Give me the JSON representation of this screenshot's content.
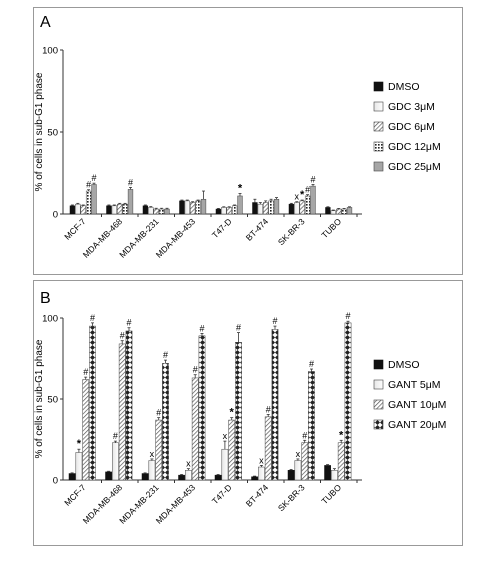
{
  "chart_data": [
    {
      "type": "bar",
      "panel_label": "A",
      "ylabel": "% of cells in sub-G1 phase",
      "ylim": [
        0,
        100
      ],
      "yticks": [
        "0",
        "50",
        "100"
      ],
      "categories": [
        "MCF-7",
        "MDA-MB-468",
        "MDA-MB-231",
        "MDA-MB-453",
        "T47-D",
        "BT-474",
        "SK-BR-3",
        "TUBO"
      ],
      "series": [
        {
          "name": "DMSO",
          "pattern": "solid",
          "values": [
            5,
            5,
            5,
            8,
            3,
            7,
            6,
            4
          ],
          "errors": [
            0.5,
            0.5,
            0.5,
            0.5,
            0.4,
            2,
            0.5,
            0.4
          ],
          "markers": [
            "",
            "",
            "",
            "",
            "",
            "",
            "",
            ""
          ]
        },
        {
          "name": "GDC 3μM",
          "pattern": "light",
          "values": [
            6,
            5,
            4,
            8,
            4,
            6,
            7,
            2
          ],
          "errors": [
            0.5,
            0.5,
            0.5,
            0.5,
            0.4,
            1,
            0.5,
            0.4
          ],
          "markers": [
            "",
            "",
            "",
            "",
            "",
            "",
            "x",
            ""
          ]
        },
        {
          "name": "GDC 6μM",
          "pattern": "diag",
          "values": [
            5,
            6,
            3,
            7,
            4,
            7,
            8,
            3
          ],
          "errors": [
            0.5,
            0.5,
            0.5,
            0.5,
            0.4,
            1,
            0.5,
            0.4
          ],
          "markers": [
            "",
            "",
            "",
            "",
            "",
            "",
            "*",
            ""
          ]
        },
        {
          "name": "GDC 12μM",
          "pattern": "dots",
          "values": [
            14,
            6,
            3,
            8,
            5,
            8,
            11,
            3
          ],
          "errors": [
            0.8,
            0.5,
            0.5,
            0.5,
            0.5,
            1,
            0.8,
            0.4
          ],
          "markers": [
            "#",
            "",
            "",
            "",
            "",
            "",
            "#",
            ""
          ]
        },
        {
          "name": "GDC 25μM",
          "pattern": "grey",
          "values": [
            18,
            15,
            3,
            9,
            11,
            9,
            17,
            4
          ],
          "errors": [
            0.8,
            1.2,
            0.5,
            5,
            1.5,
            1,
            1,
            0.4
          ],
          "markers": [
            "#",
            "#",
            "",
            "",
            "*",
            "",
            "#",
            ""
          ]
        }
      ],
      "legend_position": "right"
    },
    {
      "type": "bar",
      "panel_label": "B",
      "ylabel": "% of cells in sub-G1 phase",
      "ylim": [
        0,
        100
      ],
      "yticks": [
        "0",
        "50",
        "100"
      ],
      "categories": [
        "MCF-7",
        "MDA-MB-468",
        "MDA-MB-231",
        "MDA-MB-453",
        "T47-D",
        "BT-474",
        "SK-BR-3",
        "TUBO"
      ],
      "series": [
        {
          "name": "DMSO",
          "pattern": "solid",
          "values": [
            4,
            5,
            4,
            3,
            3,
            2,
            6,
            9
          ],
          "errors": [
            0.4,
            0.4,
            0.4,
            0.4,
            0.4,
            0.4,
            0.5,
            0.5
          ],
          "markers": [
            "",
            "",
            "",
            "",
            "",
            "",
            "",
            ""
          ]
        },
        {
          "name": "GANT 5μM",
          "pattern": "light",
          "values": [
            17,
            23,
            12,
            6,
            19,
            8,
            12,
            6
          ],
          "errors": [
            2,
            1,
            1,
            1,
            5,
            1,
            1,
            1
          ],
          "markers": [
            "*",
            "#",
            "x",
            "x",
            "x",
            "x",
            "x",
            ""
          ]
        },
        {
          "name": "GANT 10μM",
          "pattern": "diag",
          "values": [
            62,
            84,
            37,
            63,
            37,
            39,
            23,
            23
          ],
          "errors": [
            1.5,
            2,
            1.5,
            2,
            1.5,
            1.5,
            1.5,
            1.5
          ],
          "markers": [
            "#",
            "#",
            "#",
            "#",
            "*",
            "#",
            "#",
            "*"
          ]
        },
        {
          "name": "GANT 20μM",
          "pattern": "diamond",
          "values": [
            95,
            92,
            72,
            89,
            85,
            93,
            67,
            97
          ],
          "errors": [
            2,
            2,
            2,
            1.5,
            6,
            2,
            1.5,
            1
          ],
          "markers": [
            "#",
            "#",
            "#",
            "#",
            "#",
            "#",
            "#",
            "#"
          ]
        }
      ],
      "legend_position": "right"
    }
  ]
}
